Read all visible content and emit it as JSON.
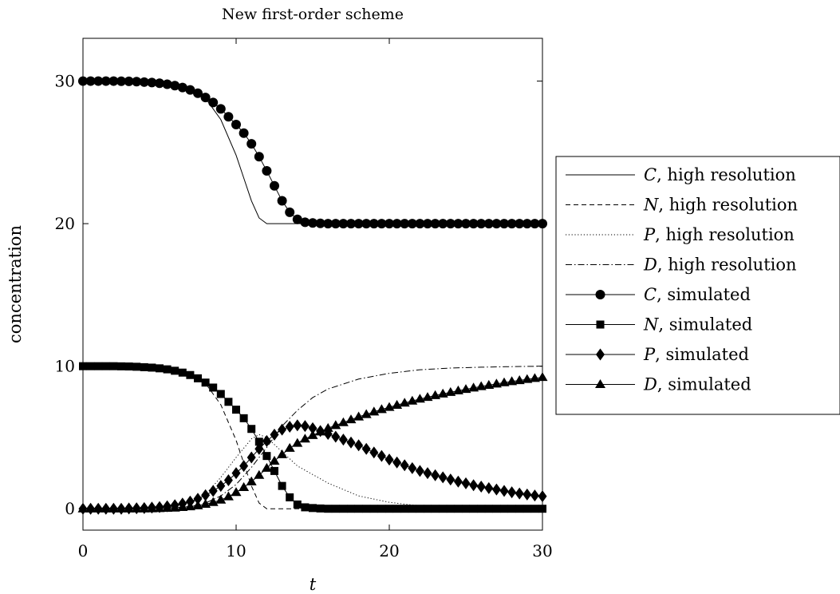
{
  "chart_data": {
    "type": "line",
    "title": "New first-order scheme",
    "xlabel": "t",
    "ylabel": "concentration",
    "xlim": [
      0,
      30
    ],
    "ylim": [
      -1.5,
      33
    ],
    "xticks": [
      0,
      10,
      20,
      30
    ],
    "yticks": [
      0,
      10,
      20,
      30
    ],
    "grid": false,
    "legend_position": "outside-right",
    "series": [
      {
        "var": "C",
        "name": ", high resolution",
        "style": "solid",
        "marker": "none",
        "x": [
          0,
          4,
          6,
          7,
          8,
          9,
          10,
          10.5,
          11,
          11.5,
          12,
          13,
          30
        ],
        "y": [
          30,
          29.95,
          29.8,
          29.5,
          28.8,
          27.3,
          24.8,
          23.2,
          21.6,
          20.4,
          20.0,
          20.0,
          20.0
        ]
      },
      {
        "var": "N",
        "name": ", high resolution",
        "style": "dashed",
        "marker": "none",
        "x": [
          0,
          4,
          6,
          7,
          8,
          9,
          10,
          10.5,
          11,
          11.5,
          12,
          13,
          30
        ],
        "y": [
          10,
          9.95,
          9.8,
          9.5,
          8.8,
          7.3,
          4.8,
          3.2,
          1.6,
          0.4,
          0.0,
          0.0,
          0.0
        ]
      },
      {
        "var": "P",
        "name": ", high resolution",
        "style": "dotted",
        "marker": "none",
        "x": [
          0,
          5,
          7,
          8,
          9,
          10,
          11,
          11.5,
          12,
          13,
          14,
          16,
          18,
          20,
          22,
          24,
          30
        ],
        "y": [
          0,
          0.05,
          0.4,
          1.0,
          2.2,
          3.6,
          4.9,
          5.2,
          5.0,
          4.0,
          3.0,
          1.8,
          0.9,
          0.45,
          0.2,
          0.08,
          0.0
        ]
      },
      {
        "var": "D",
        "name": ", high resolution",
        "style": "dashdot",
        "marker": "none",
        "x": [
          0,
          5,
          7,
          8,
          9,
          10,
          11,
          12,
          13,
          14,
          15,
          16,
          18,
          20,
          22,
          24,
          26,
          28,
          30
        ],
        "y": [
          0,
          0.02,
          0.15,
          0.4,
          0.9,
          1.7,
          2.9,
          4.3,
          5.8,
          6.9,
          7.8,
          8.4,
          9.1,
          9.5,
          9.75,
          9.87,
          9.93,
          9.97,
          10.0
        ]
      },
      {
        "var": "C",
        "name": ", simulated",
        "style": "solid",
        "marker": "circle",
        "x": [
          0,
          0.5,
          1,
          1.5,
          2,
          2.5,
          3,
          3.5,
          4,
          4.5,
          5,
          5.5,
          6,
          6.5,
          7,
          7.5,
          8,
          8.5,
          9,
          9.5,
          10,
          10.5,
          11,
          11.5,
          12,
          12.5,
          13,
          13.5,
          14,
          14.5,
          15,
          15.5,
          16,
          16.5,
          17,
          17.5,
          18,
          18.5,
          19,
          19.5,
          20,
          20.5,
          21,
          21.5,
          22,
          22.5,
          23,
          23.5,
          24,
          24.5,
          25,
          25.5,
          26,
          26.5,
          27,
          27.5,
          28,
          28.5,
          29,
          29.5,
          30
        ],
        "y": [
          30,
          30,
          30,
          30,
          30,
          29.99,
          29.98,
          29.96,
          29.93,
          29.9,
          29.85,
          29.78,
          29.68,
          29.55,
          29.38,
          29.15,
          28.85,
          28.5,
          28.05,
          27.5,
          26.95,
          26.35,
          25.6,
          24.7,
          23.7,
          22.65,
          21.6,
          20.8,
          20.3,
          20.1,
          20.05,
          20.02,
          20,
          20,
          20,
          20,
          20,
          20,
          20,
          20,
          20,
          20,
          20,
          20,
          20,
          20,
          20,
          20,
          20,
          20,
          20,
          20,
          20,
          20,
          20,
          20,
          20,
          20,
          20,
          20,
          20
        ]
      },
      {
        "var": "N",
        "name": ", simulated",
        "style": "solid",
        "marker": "square",
        "x": [
          0,
          0.5,
          1,
          1.5,
          2,
          2.5,
          3,
          3.5,
          4,
          4.5,
          5,
          5.5,
          6,
          6.5,
          7,
          7.5,
          8,
          8.5,
          9,
          9.5,
          10,
          10.5,
          11,
          11.5,
          12,
          12.5,
          13,
          13.5,
          14,
          14.5,
          15,
          15.5,
          16,
          16.5,
          17,
          17.5,
          18,
          18.5,
          19,
          19.5,
          20,
          20.5,
          21,
          21.5,
          22,
          22.5,
          23,
          23.5,
          24,
          24.5,
          25,
          25.5,
          26,
          26.5,
          27,
          27.5,
          28,
          28.5,
          29,
          29.5,
          30
        ],
        "y": [
          10,
          10,
          10,
          10,
          10,
          9.99,
          9.98,
          9.96,
          9.93,
          9.9,
          9.85,
          9.78,
          9.68,
          9.55,
          9.38,
          9.15,
          8.85,
          8.5,
          8.05,
          7.5,
          6.95,
          6.35,
          5.6,
          4.7,
          3.7,
          2.65,
          1.6,
          0.8,
          0.3,
          0.1,
          0.05,
          0.02,
          0,
          0,
          0,
          0,
          0,
          0,
          0,
          0,
          0,
          0,
          0,
          0,
          0,
          0,
          0,
          0,
          0,
          0,
          0,
          0,
          0,
          0,
          0,
          0,
          0,
          0,
          0,
          0,
          0
        ]
      },
      {
        "var": "P",
        "name": ", simulated",
        "style": "solid",
        "marker": "diamond",
        "x": [
          0,
          0.5,
          1,
          1.5,
          2,
          2.5,
          3,
          3.5,
          4,
          4.5,
          5,
          5.5,
          6,
          6.5,
          7,
          7.5,
          8,
          8.5,
          9,
          9.5,
          10,
          10.5,
          11,
          11.5,
          12,
          12.5,
          13,
          13.5,
          14,
          14.5,
          15,
          15.5,
          16,
          16.5,
          17,
          17.5,
          18,
          18.5,
          19,
          19.5,
          20,
          20.5,
          21,
          21.5,
          22,
          22.5,
          23,
          23.5,
          24,
          24.5,
          25,
          25.5,
          26,
          26.5,
          27,
          27.5,
          28,
          28.5,
          29,
          29.5,
          30
        ],
        "y": [
          0,
          0,
          0,
          0,
          0,
          0,
          0.02,
          0.03,
          0.05,
          0.08,
          0.12,
          0.17,
          0.25,
          0.36,
          0.5,
          0.7,
          0.95,
          1.25,
          1.6,
          2.0,
          2.5,
          3.0,
          3.6,
          4.2,
          4.75,
          5.2,
          5.55,
          5.75,
          5.85,
          5.8,
          5.65,
          5.45,
          5.25,
          5.05,
          4.85,
          4.65,
          4.45,
          4.2,
          3.95,
          3.7,
          3.45,
          3.25,
          3.05,
          2.85,
          2.65,
          2.5,
          2.35,
          2.2,
          2.05,
          1.9,
          1.78,
          1.65,
          1.55,
          1.45,
          1.35,
          1.25,
          1.15,
          1.07,
          1.0,
          0.93,
          0.87
        ]
      },
      {
        "var": "D",
        "name": ", simulated",
        "style": "solid",
        "marker": "triangle",
        "x": [
          0,
          0.5,
          1,
          1.5,
          2,
          2.5,
          3,
          3.5,
          4,
          4.5,
          5,
          5.5,
          6,
          6.5,
          7,
          7.5,
          8,
          8.5,
          9,
          9.5,
          10,
          10.5,
          11,
          11.5,
          12,
          12.5,
          13,
          13.5,
          14,
          14.5,
          15,
          15.5,
          16,
          16.5,
          17,
          17.5,
          18,
          18.5,
          19,
          19.5,
          20,
          20.5,
          21,
          21.5,
          22,
          22.5,
          23,
          23.5,
          24,
          24.5,
          25,
          25.5,
          26,
          26.5,
          27,
          27.5,
          28,
          28.5,
          29,
          29.5,
          30
        ],
        "y": [
          0,
          0,
          0,
          0,
          0,
          0,
          0,
          0,
          0,
          0.01,
          0.02,
          0.04,
          0.06,
          0.1,
          0.15,
          0.22,
          0.32,
          0.45,
          0.62,
          0.85,
          1.15,
          1.5,
          1.9,
          2.35,
          2.85,
          3.35,
          3.8,
          4.25,
          4.6,
          4.9,
          5.15,
          5.4,
          5.65,
          5.85,
          6.05,
          6.25,
          6.45,
          6.62,
          6.8,
          6.97,
          7.12,
          7.27,
          7.42,
          7.56,
          7.7,
          7.82,
          7.95,
          8.06,
          8.17,
          8.28,
          8.38,
          8.48,
          8.58,
          8.67,
          8.76,
          8.85,
          8.93,
          9.0,
          9.08,
          9.15,
          9.22
        ]
      }
    ]
  }
}
